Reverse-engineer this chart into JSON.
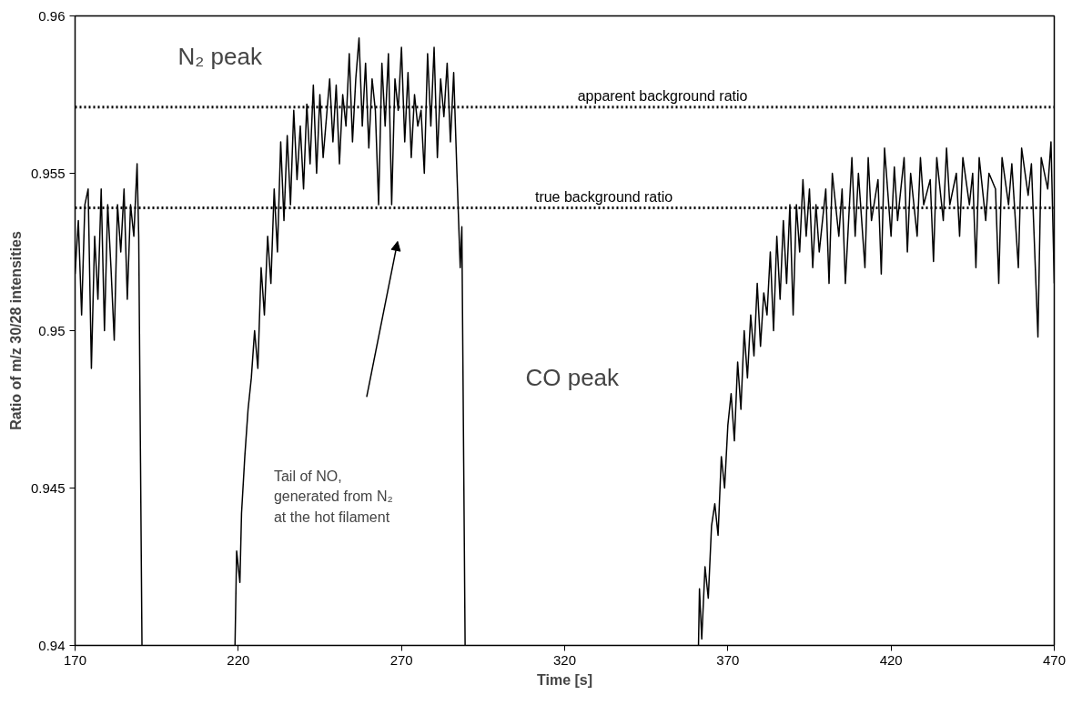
{
  "chart_data": {
    "type": "line",
    "xlabel": "Time [s]",
    "ylabel": "Ratio of m/z 30/28 intensities",
    "xlim": [
      170,
      470
    ],
    "xticks": [
      170,
      220,
      270,
      320,
      370,
      420,
      470
    ],
    "ylim": [
      0.94,
      0.96
    ],
    "yticks": [
      0.94,
      0.945,
      0.95,
      0.955,
      0.96
    ],
    "grid": false,
    "marker": "none",
    "series": [
      {
        "color": "#000000",
        "line_style": "solid",
        "x": [
          170,
          171,
          172,
          173,
          174,
          175,
          176,
          177,
          178,
          179,
          180,
          181,
          182,
          183,
          184,
          185,
          186,
          187,
          188,
          189,
          189.5,
          190.5,
          200,
          219,
          219.5,
          220.5,
          221,
          222,
          223,
          224,
          225,
          226,
          227,
          228,
          229,
          230,
          231,
          232,
          233,
          234,
          235,
          236,
          237,
          238,
          239,
          240,
          241,
          242,
          243,
          244,
          245,
          246,
          248,
          249,
          250,
          251,
          252,
          253,
          254,
          255,
          256,
          257,
          258,
          259,
          260,
          261,
          262,
          263,
          264,
          265,
          266,
          267,
          268,
          269,
          270,
          271,
          272,
          273,
          274,
          275,
          276,
          277,
          278,
          279,
          280,
          281,
          282,
          283,
          284,
          285,
          286,
          287,
          288,
          288.5,
          289.5,
          320,
          361,
          361.3,
          362,
          363,
          364,
          365,
          366,
          367,
          368,
          369,
          370,
          371,
          372,
          373,
          374,
          375,
          376,
          377,
          378,
          379,
          380,
          381,
          382,
          383,
          384,
          385,
          386,
          387,
          388,
          389,
          390,
          391,
          392,
          393,
          394,
          395,
          396,
          397,
          398,
          400,
          401,
          402,
          404,
          405,
          406,
          408,
          409,
          410,
          412,
          413,
          414,
          416,
          417,
          418,
          420,
          421,
          422,
          424,
          425,
          426,
          428,
          429,
          430,
          432,
          433,
          434,
          436,
          437,
          438,
          440,
          441,
          442,
          444,
          445,
          446,
          447,
          449,
          450,
          452,
          453,
          454,
          456,
          457,
          459,
          460,
          462,
          463,
          465,
          466,
          468,
          469,
          470
        ],
        "values": [
          0.9518,
          0.9535,
          0.9505,
          0.954,
          0.9545,
          0.9488,
          0.953,
          0.951,
          0.9545,
          0.95,
          0.954,
          0.952,
          0.9497,
          0.954,
          0.9525,
          0.9545,
          0.951,
          0.954,
          0.953,
          0.9553,
          0.953,
          0.94,
          null,
          0.94,
          0.943,
          0.942,
          0.9442,
          0.946,
          0.9475,
          0.9485,
          0.95,
          0.9488,
          0.952,
          0.9505,
          0.953,
          0.9515,
          0.9545,
          0.9525,
          0.956,
          0.9535,
          0.9562,
          0.954,
          0.957,
          0.9548,
          0.9565,
          0.9545,
          0.9572,
          0.9553,
          0.9578,
          0.955,
          0.9575,
          0.9555,
          0.958,
          0.956,
          0.9578,
          0.9553,
          0.9575,
          0.9565,
          0.9588,
          0.956,
          0.958,
          0.9593,
          0.9565,
          0.9585,
          0.9558,
          0.958,
          0.957,
          0.954,
          0.9585,
          0.9565,
          0.9588,
          0.954,
          0.958,
          0.957,
          0.959,
          0.956,
          0.9582,
          0.9555,
          0.9575,
          0.9565,
          0.957,
          0.955,
          0.9588,
          0.9565,
          0.959,
          0.9555,
          0.958,
          0.9568,
          0.9585,
          0.956,
          0.9582,
          0.955,
          0.952,
          0.9533,
          0.94,
          null,
          0.94,
          0.9418,
          0.9402,
          0.9425,
          0.9415,
          0.9438,
          0.9445,
          0.9435,
          0.946,
          0.945,
          0.947,
          0.948,
          0.9465,
          0.949,
          0.9475,
          0.95,
          0.9485,
          0.9505,
          0.9492,
          0.9515,
          0.9495,
          0.9512,
          0.9505,
          0.9525,
          0.95,
          0.953,
          0.951,
          0.9535,
          0.9515,
          0.954,
          0.9505,
          0.954,
          0.9525,
          0.9548,
          0.953,
          0.9545,
          0.952,
          0.954,
          0.9525,
          0.9545,
          0.9515,
          0.955,
          0.953,
          0.9545,
          0.9515,
          0.9555,
          0.953,
          0.955,
          0.952,
          0.9555,
          0.9535,
          0.9548,
          0.9518,
          0.9558,
          0.953,
          0.9552,
          0.9535,
          0.9555,
          0.9525,
          0.955,
          0.953,
          0.9555,
          0.954,
          0.9548,
          0.9522,
          0.9555,
          0.9535,
          0.9558,
          0.954,
          0.955,
          0.953,
          0.9555,
          0.954,
          0.955,
          0.952,
          0.9555,
          0.9535,
          0.955,
          0.9545,
          0.9515,
          0.9555,
          0.954,
          0.9553,
          0.952,
          0.9558,
          0.9543,
          0.9553,
          0.9498,
          0.9555,
          0.9545,
          0.956,
          0.9515
        ]
      }
    ],
    "ref_lines": [
      {
        "axis": "y",
        "value": 0.9539,
        "label": "true background ratio",
        "color": "#000000",
        "line_style": "dotted"
      },
      {
        "axis": "y",
        "value": 0.9571,
        "label": "apparent background ratio",
        "color": "#000000",
        "line_style": "dotted"
      }
    ],
    "annotations": [
      "N₂ peak",
      "CO peak",
      "Tail of NO,\ngenerated from N₂\nat the hot filament"
    ]
  }
}
